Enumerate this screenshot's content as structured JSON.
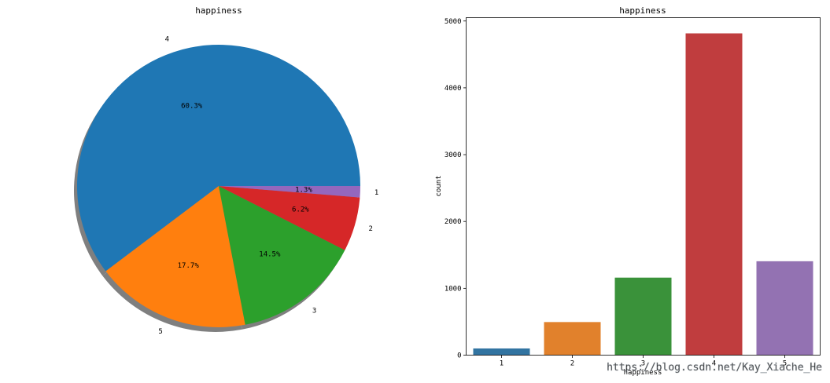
{
  "chart_data": [
    {
      "type": "pie",
      "title": "happiness",
      "labels": [
        "4",
        "5",
        "3",
        "2",
        "1"
      ],
      "values": [
        60.3,
        17.7,
        14.5,
        6.2,
        1.3
      ],
      "pct_labels": [
        "60.3%",
        "17.7%",
        "14.5%",
        "6.2%",
        "1.3%"
      ],
      "colors": [
        "#1f77b4",
        "#ff7f0e",
        "#2ca02c",
        "#d62728",
        "#9467bd"
      ],
      "shadow": true,
      "start_angle_deg": 0,
      "direction": "counterclockwise"
    },
    {
      "type": "bar",
      "title": "happiness",
      "xlabel": "happiness",
      "ylabel": "count",
      "categories": [
        "1",
        "2",
        "3",
        "4",
        "5"
      ],
      "values": [
        100,
        495,
        1160,
        4815,
        1405
      ],
      "colors": [
        "#3274a1",
        "#e1812c",
        "#3a923a",
        "#c03d3e",
        "#9372b2"
      ],
      "ylim": [
        0,
        5050
      ],
      "yticks": [
        0,
        1000,
        2000,
        3000,
        4000,
        5000
      ],
      "grid": false
    }
  ],
  "watermark": "https://blog.csdn.net/Kay_Xiache_He"
}
